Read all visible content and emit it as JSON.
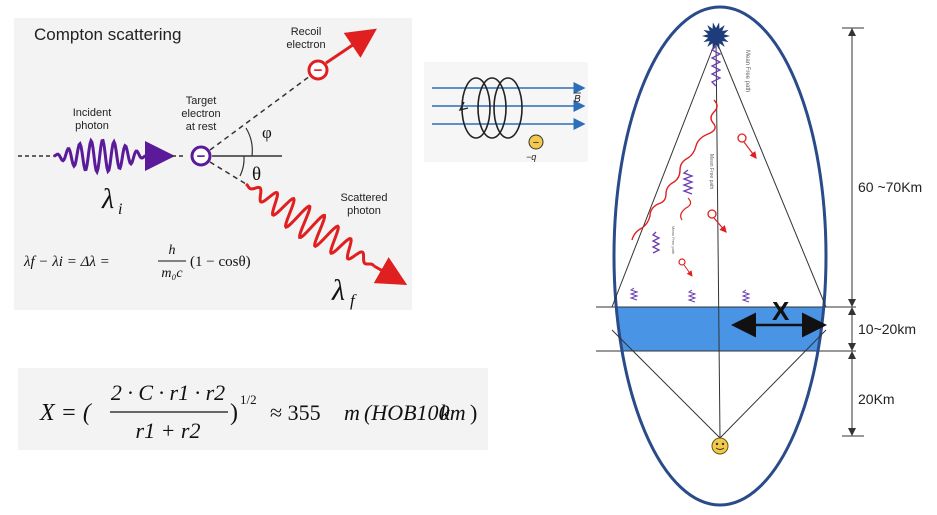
{
  "compton": {
    "title": "Compton scattering",
    "incident_label": [
      "Incident",
      "photon"
    ],
    "target_label": [
      "Target",
      "electron",
      "at rest"
    ],
    "recoil_label": [
      "Recoil",
      "electron"
    ],
    "scattered_label": [
      "Scattered",
      "photon"
    ],
    "phi": "φ",
    "theta": "θ",
    "lambda_i": "λ",
    "lambda_i_sub": "i",
    "lambda_f": "λ",
    "lambda_f_sub": "f",
    "equation_lhs": "λf − λi = Δλ =",
    "eq_num": "h",
    "eq_den": "m₀c",
    "equation_rhs": "(1 − cosθ)",
    "electron_sign": "−"
  },
  "helix": {
    "field_label": "B",
    "charge_label": "−q",
    "charge_sign": "−"
  },
  "formula": {
    "lhs": "X = (",
    "numerator": "2 · C · r1 · r2",
    "denominator": "r1 + r2",
    "rhs_paren": ")",
    "exponent": "1/2",
    "approx": "≈ 355",
    "m": "m",
    "hob": "(HOB100",
    "km": "km",
    "close": ")"
  },
  "cascade": {
    "x_label": "X",
    "dim_top": "60 ~70Km",
    "dim_mid": "10~20km",
    "dim_bottom": "20Km",
    "mean_free_path": "Mean Free path",
    "colors": {
      "ellipse": "#2a4a8a",
      "layer": "#4a94e6",
      "red": "#e02020",
      "purple": "#6a3db0"
    }
  }
}
